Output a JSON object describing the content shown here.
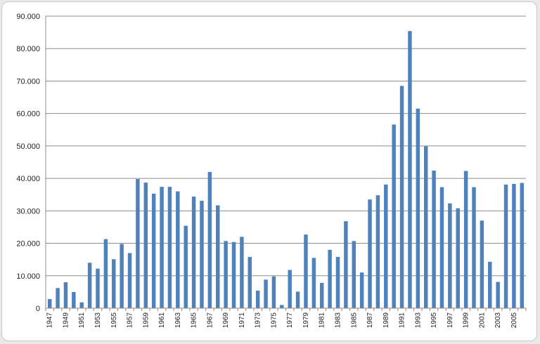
{
  "chart_data": {
    "type": "bar",
    "title": "",
    "xlabel": "",
    "ylabel": "",
    "ylim": [
      0,
      90000
    ],
    "yticks": [
      0,
      10000,
      20000,
      30000,
      40000,
      50000,
      60000,
      70000,
      80000,
      90000
    ],
    "ytick_labels": [
      "0",
      "10.000",
      "20.000",
      "30.000",
      "40.000",
      "50.000",
      "60.000",
      "70.000",
      "80.000",
      "90.000"
    ],
    "grid": true,
    "legend": "none",
    "bar_color": "#4f81bd",
    "categories": [
      "1947",
      "1948",
      "1949",
      "1950",
      "1951",
      "1952",
      "1953",
      "1954",
      "1955",
      "1956",
      "1957",
      "1958",
      "1959",
      "1960",
      "1961",
      "1962",
      "1963",
      "1964",
      "1965",
      "1966",
      "1967",
      "1968",
      "1969",
      "1970",
      "1971",
      "1972",
      "1973",
      "1974",
      "1975",
      "1976",
      "1977",
      "1978",
      "1979",
      "1980",
      "1981",
      "1982",
      "1983",
      "1984",
      "1985",
      "1986",
      "1987",
      "1988",
      "1989",
      "1990",
      "1991",
      "1992",
      "1993",
      "1994",
      "1995",
      "1996",
      "1997",
      "1998",
      "1999",
      "2000",
      "2001",
      "2002",
      "2003",
      "2004",
      "2005",
      "2006"
    ],
    "xtick_labels_shown": [
      "1947",
      "1949",
      "1951",
      "1953",
      "1955",
      "1957",
      "1959",
      "1961",
      "1963",
      "1965",
      "1967",
      "1969",
      "1971",
      "1973",
      "1975",
      "1977",
      "1979",
      "1981",
      "1983",
      "1985",
      "1987",
      "1989",
      "1991",
      "1993",
      "1995",
      "1997",
      "1999",
      "2001",
      "2003",
      "2005"
    ],
    "values": [
      2800,
      6200,
      8000,
      5000,
      1800,
      14000,
      12200,
      21300,
      15100,
      19800,
      17000,
      39800,
      38700,
      35300,
      37400,
      37400,
      36000,
      25400,
      34400,
      33100,
      42000,
      31700,
      20700,
      20400,
      22000,
      15800,
      5400,
      8800,
      9800,
      1000,
      11800,
      5100,
      22700,
      15500,
      7800,
      18000,
      15800,
      26800,
      20700,
      11000,
      33500,
      34800,
      38100,
      56600,
      68500,
      85400,
      61500,
      49900,
      42400,
      37300,
      32300,
      30800,
      42300,
      37300,
      27000,
      14300,
      8100,
      38100,
      38300,
      38600
    ]
  }
}
